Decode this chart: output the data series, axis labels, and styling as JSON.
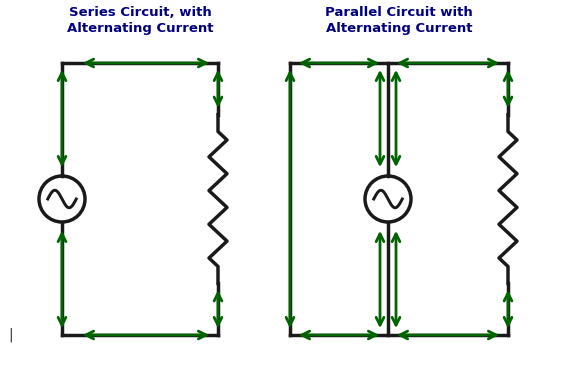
{
  "bg_color": "#ffffff",
  "wire_color": "#1a1a1a",
  "arrow_color": "#006400",
  "wire_lw": 2.5,
  "arrow_lw": 2.0,
  "title1": "Series Circuit, with\nAlternating Current",
  "title2": "Parallel Circuit with\nAlternating Current",
  "title_fontsize": 9.5,
  "title_fontweight": "bold",
  "title_color": "#000080",
  "resistor_color": "#1a1a1a",
  "source_color": "#1a1a1a",
  "cursor_color": "#333333"
}
